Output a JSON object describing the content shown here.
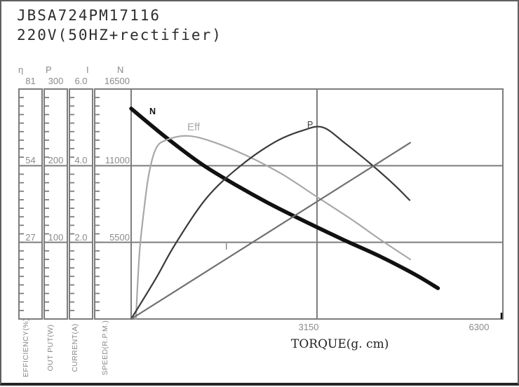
{
  "header": {
    "model": "JBSA724PM17116",
    "spec": "220V(50HZ+rectifier)"
  },
  "left_axes": [
    {
      "symbol": "η",
      "name": "EFFICIENCY(%)",
      "ticks": [
        "81",
        "54",
        "27"
      ]
    },
    {
      "symbol": "P",
      "name": "OUT PUT(W)",
      "ticks": [
        "300",
        "200",
        "100"
      ]
    },
    {
      "symbol": "I",
      "name": "CURRENT(A)",
      "ticks": [
        "6.0",
        "4.0",
        "2.0"
      ]
    },
    {
      "symbol": "N",
      "name": "SPEED(R.P.M.)",
      "ticks": [
        "16500",
        "11000",
        "5500"
      ]
    }
  ],
  "x_axis": {
    "title": "TORQUE(g. cm)",
    "ticks": [
      "3150",
      "6300"
    ]
  },
  "chart_data": {
    "type": "line",
    "title": "JBSA724PM17116 220V(50HZ+rectifier)",
    "xlabel": "TORQUE(g. cm)",
    "x_range": [
      0,
      6300
    ],
    "x_ticks": [
      3150,
      6300
    ],
    "grid": "major-thirds",
    "grid_color": "#7d7d7d",
    "legend_position": "inline-labels",
    "axes": [
      {
        "id": "eta",
        "label": "EFFICIENCY(%)",
        "range": [
          0,
          81
        ],
        "ticks": [
          27,
          54,
          81
        ]
      },
      {
        "id": "P",
        "label": "OUT PUT(W)",
        "range": [
          0,
          300
        ],
        "ticks": [
          100,
          200,
          300
        ]
      },
      {
        "id": "I",
        "label": "CURRENT(A)",
        "range": [
          0,
          6.0
        ],
        "ticks": [
          2.0,
          4.0,
          6.0
        ]
      },
      {
        "id": "N",
        "label": "SPEED(R.P.M.)",
        "range": [
          0,
          16500
        ],
        "ticks": [
          5500,
          11000,
          16500
        ]
      }
    ],
    "series": [
      {
        "name": "speed",
        "label": "N",
        "axis": "N",
        "color": "#111111",
        "width": 5.5,
        "points": [
          [
            0,
            15100
          ],
          [
            600,
            13000
          ],
          [
            1200,
            11100
          ],
          [
            1800,
            9550
          ],
          [
            2400,
            8150
          ],
          [
            3000,
            6890
          ],
          [
            3600,
            5680
          ],
          [
            4200,
            4530
          ],
          [
            4800,
            3220
          ],
          [
            5200,
            2210
          ]
        ]
      },
      {
        "name": "efficiency",
        "label": "Eff",
        "axis": "eta",
        "color": "#a8a8a8",
        "width": 2.2,
        "points": [
          [
            80,
            0
          ],
          [
            140,
            23
          ],
          [
            215,
            38
          ],
          [
            300,
            51
          ],
          [
            420,
            60
          ],
          [
            590,
            63
          ],
          [
            950,
            64.5
          ],
          [
            1370,
            62.5
          ],
          [
            1960,
            57.5
          ],
          [
            2560,
            51
          ],
          [
            3150,
            43
          ],
          [
            3740,
            35
          ],
          [
            4220,
            28
          ],
          [
            4730,
            21
          ]
        ]
      },
      {
        "name": "output-power",
        "label": "P",
        "axis": "P",
        "color": "#3a3a3a",
        "width": 2.2,
        "points": [
          [
            0,
            0
          ],
          [
            420,
            53
          ],
          [
            750,
            98
          ],
          [
            1280,
            158
          ],
          [
            1840,
            199
          ],
          [
            2440,
            231
          ],
          [
            2910,
            246
          ],
          [
            3250,
            250
          ],
          [
            3630,
            229
          ],
          [
            4080,
            201
          ],
          [
            4460,
            175
          ],
          [
            4720,
            155
          ]
        ]
      },
      {
        "name": "current",
        "label": "I",
        "axis": "I",
        "color": "#707070",
        "width": 2.2,
        "points": [
          [
            0,
            0
          ],
          [
            4730,
            4.6
          ]
        ]
      }
    ]
  }
}
